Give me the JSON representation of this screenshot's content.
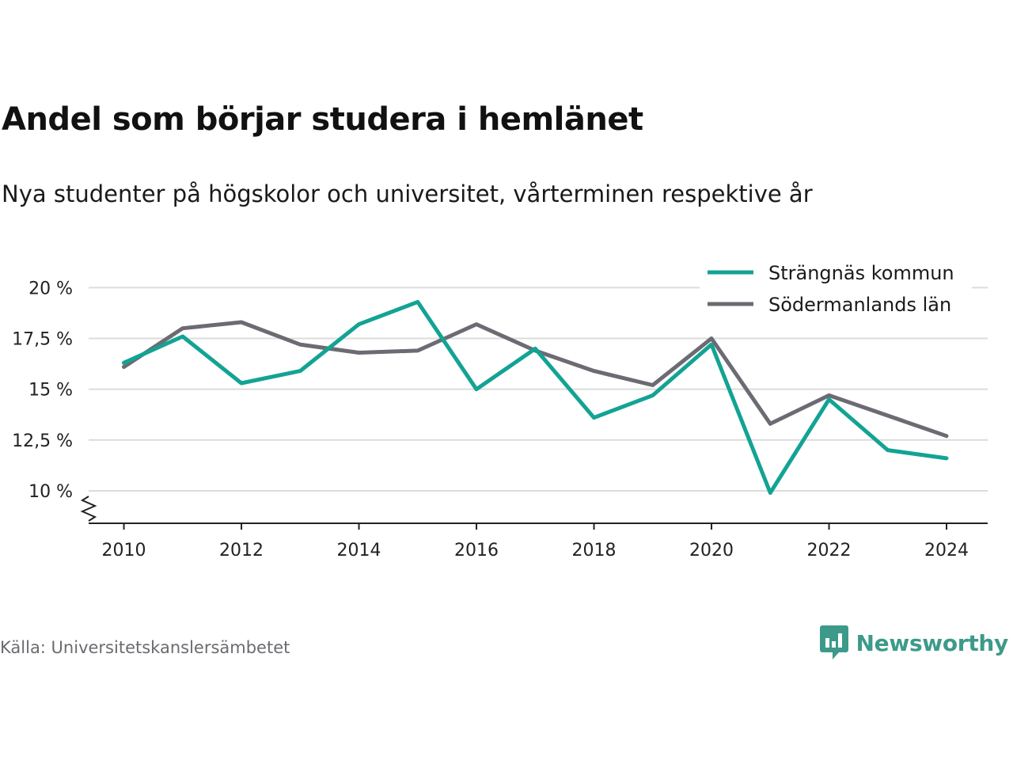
{
  "header": {
    "title": "Andel som börjar studera i hemlänet",
    "subtitle": "Nya studenter på högskolor och universitet, vårterminen respektive år"
  },
  "footer": {
    "source": "Källa: Universitetskanslersämbetet",
    "brand": "Newsworthy",
    "brand_icon": "newsworthy-logo-icon"
  },
  "colors": {
    "strangnas": "#13a394",
    "sodermanland": "#6c6b73",
    "grid": "#dcdcdc",
    "axis": "#222222",
    "brand": "#3d9a8a"
  },
  "chart_data": {
    "type": "line",
    "x": [
      2010,
      2011,
      2012,
      2013,
      2014,
      2015,
      2016,
      2017,
      2018,
      2019,
      2020,
      2021,
      2022,
      2023,
      2024
    ],
    "series": [
      {
        "name": "Strängnäs kommun",
        "values": [
          16.3,
          17.6,
          15.3,
          15.9,
          18.2,
          19.3,
          15.0,
          17.0,
          13.6,
          14.7,
          17.2,
          9.9,
          14.5,
          12.0,
          11.6
        ]
      },
      {
        "name": "Södermanlands län",
        "values": [
          16.1,
          18.0,
          18.3,
          17.2,
          16.8,
          16.9,
          18.2,
          16.9,
          15.9,
          15.2,
          17.5,
          13.3,
          14.7,
          13.7,
          12.7
        ]
      }
    ],
    "xticks": [
      "2010",
      "2012",
      "2014",
      "2016",
      "2018",
      "2020",
      "2022",
      "2024"
    ],
    "yticks": [
      "20 %",
      "17,5 %",
      "15 %",
      "12,5 %",
      "10 %"
    ],
    "ytick_values": [
      20,
      17.5,
      15,
      12.5,
      10
    ],
    "ylim": [
      8.4,
      20.6
    ],
    "xlim": [
      2009.4,
      2024.7
    ],
    "grid": true,
    "legend": "top-right",
    "axis_break": true
  }
}
